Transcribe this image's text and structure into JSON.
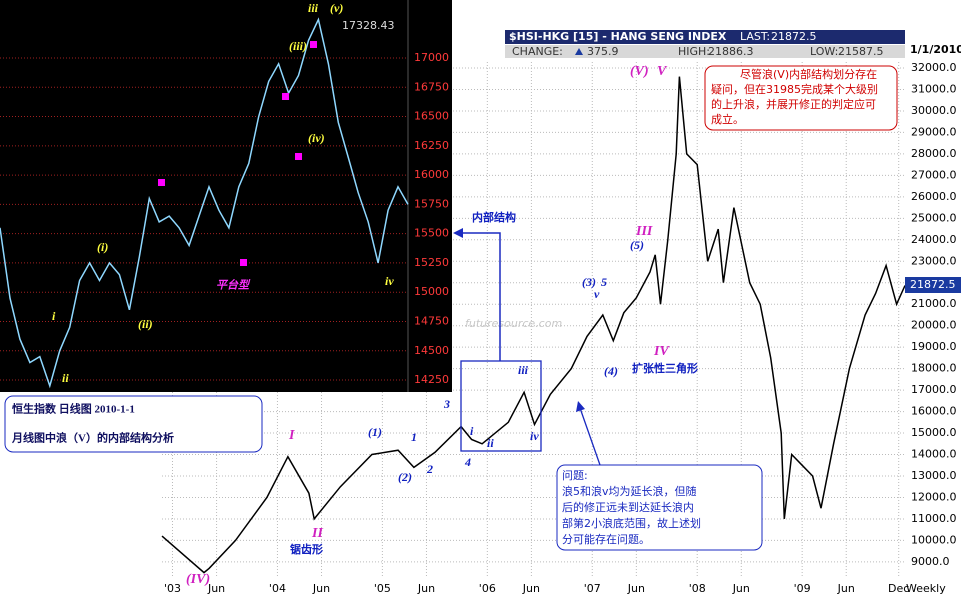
{
  "header": {
    "symbol": "$HSI-HKG [15] - HANG SENG INDEX",
    "last_label": "LAST:",
    "last": 21872.5,
    "change_label": "CHANGE:",
    "change": 375.9,
    "high_label": "HIGH:",
    "high": 21886.3,
    "low_label": "LOW:",
    "low": 21587.5,
    "date": "1/1/2010"
  },
  "chart_data": [
    {
      "type": "line",
      "color": "#000000",
      "grid": true,
      "x_unit_label": "Weekly",
      "last_value": 21872.5,
      "x": [
        2002.9,
        2003.3,
        2003.35,
        2003.6,
        2003.9,
        2004.1,
        2004.3,
        2004.35,
        2004.6,
        2004.9,
        2005.15,
        2005.3,
        2005.5,
        2005.75,
        2005.85,
        2005.95,
        2006.2,
        2006.35,
        2006.45,
        2006.6,
        2006.8,
        2006.95,
        2007.1,
        2007.2,
        2007.3,
        2007.42,
        2007.55,
        2007.6,
        2007.65,
        2007.72,
        2007.8,
        2007.83,
        2007.9,
        2008.0,
        2008.1,
        2008.2,
        2008.25,
        2008.35,
        2008.5,
        2008.6,
        2008.7,
        2008.8,
        2008.83,
        2008.9,
        2009.0,
        2009.1,
        2009.18,
        2009.3,
        2009.45,
        2009.6,
        2009.7,
        2009.8,
        2009.9,
        2009.98
      ],
      "values": [
        10200,
        8500,
        8700,
        10000,
        12000,
        13900,
        12200,
        11000,
        12500,
        14000,
        14200,
        13400,
        14100,
        15300,
        14700,
        14500,
        15500,
        16900,
        15400,
        16800,
        18000,
        19500,
        20500,
        19300,
        20600,
        21300,
        22500,
        23300,
        21000,
        24000,
        28000,
        31600,
        28000,
        27500,
        23000,
        24500,
        22000,
        25500,
        22000,
        21000,
        18500,
        15000,
        11000,
        14000,
        13500,
        13000,
        11500,
        14500,
        18000,
        20500,
        21500,
        22800,
        21000,
        21872.5
      ],
      "xlim": [
        2002.9,
        2009.98
      ],
      "xticks": [
        {
          "value": 2003.0,
          "label": "'03"
        },
        {
          "value": 2003.42,
          "label": "Jun"
        },
        {
          "value": 2004.0,
          "label": "'04"
        },
        {
          "value": 2004.42,
          "label": "Jun"
        },
        {
          "value": 2005.0,
          "label": "'05"
        },
        {
          "value": 2005.42,
          "label": "Jun"
        },
        {
          "value": 2006.0,
          "label": "'06"
        },
        {
          "value": 2006.42,
          "label": "Jun"
        },
        {
          "value": 2007.0,
          "label": "'07"
        },
        {
          "value": 2007.42,
          "label": "Jun"
        },
        {
          "value": 2008.0,
          "label": "'08"
        },
        {
          "value": 2008.42,
          "label": "Jun"
        },
        {
          "value": 2009.0,
          "label": "'09"
        },
        {
          "value": 2009.42,
          "label": "Jun"
        },
        {
          "value": 2009.92,
          "label": "Dec"
        }
      ],
      "ylim": [
        8250,
        32280
      ],
      "yticks": [
        {
          "value": 9000,
          "label": "9000.0"
        },
        {
          "value": 10000,
          "label": "10000.0"
        },
        {
          "value": 11000,
          "label": "11000.0"
        },
        {
          "value": 12000,
          "label": "12000.0"
        },
        {
          "value": 13000,
          "label": "13000.0"
        },
        {
          "value": 14000,
          "label": "14000.0"
        },
        {
          "value": 15000,
          "label": "15000.0"
        },
        {
          "value": 16000,
          "label": "16000.0"
        },
        {
          "value": 17000,
          "label": "17000.0"
        },
        {
          "value": 18000,
          "label": "18000.0"
        },
        {
          "value": 19000,
          "label": "19000.0"
        },
        {
          "value": 20000,
          "label": "20000.0"
        },
        {
          "value": 21000,
          "label": "21000.0"
        },
        {
          "value": 22000,
          "label": "22000.0"
        },
        {
          "value": 23000,
          "label": "23000.0"
        },
        {
          "value": 24000,
          "label": "24000.0"
        },
        {
          "value": 25000,
          "label": "25000.0"
        },
        {
          "value": 26000,
          "label": "26000.0"
        },
        {
          "value": 27000,
          "label": "27000.0"
        },
        {
          "value": 28000,
          "label": "28000.0"
        },
        {
          "value": 29000,
          "label": "29000.0"
        },
        {
          "value": 30000,
          "label": "30000.0"
        },
        {
          "value": 31000,
          "label": "31000.0"
        },
        {
          "value": 32000,
          "label": "32000.0"
        }
      ],
      "annotations": [
        "(V)",
        "V",
        "III",
        "(5)",
        "(3)",
        "5",
        "v",
        "IV",
        "(4)",
        "扩张性三角形",
        "iii",
        "i",
        "ii",
        "iv",
        "3",
        "4",
        "(1)",
        "1",
        "(2)",
        "2",
        "I",
        "II",
        "锯齿形",
        "(IV)",
        "内部结构",
        "futuresource.com"
      ],
      "note": [
        "尽管浪(V)内部结构划分存在",
        "疑问，但在31985完成某个大级别",
        "的上升浪，并展开修正的判定应可",
        "成立。"
      ],
      "question": [
        "问题:",
        "浪5和浪v均为延长浪，但随",
        "后的修正远未到达延长浪内",
        "部第2小浪底范围，故上述划",
        "分可能存在问题。"
      ]
    },
    {
      "type": "line",
      "color": "#8fd8ff",
      "grid": true,
      "values": [
        15550,
        14950,
        14600,
        14400,
        14450,
        14200,
        14500,
        14700,
        15100,
        15250,
        15100,
        15250,
        15150,
        14850,
        15300,
        15800,
        15600,
        15650,
        15550,
        15400,
        15650,
        15900,
        15700,
        15550,
        15900,
        16100,
        16500,
        16800,
        16950,
        16700,
        16850,
        17150,
        17328.43,
        16950,
        16450,
        16150,
        15850,
        15600,
        15250,
        15700,
        15900,
        15750
      ],
      "ylim": [
        14148,
        17495
      ],
      "yticks": [
        14250,
        14500,
        14750,
        15000,
        15250,
        15500,
        15750,
        16000,
        16250,
        16500,
        16750,
        17000
      ],
      "annotations": [
        "iii",
        "(v)",
        "17328.43",
        "(iii)",
        "(iv)",
        "(i)",
        "(ii)",
        "i",
        "ii",
        "iv",
        "平台型"
      ],
      "title": [
        "恒生指数 日线图 2010-1-1",
        "月线图中浪（V）的内部结构分析"
      ]
    }
  ]
}
